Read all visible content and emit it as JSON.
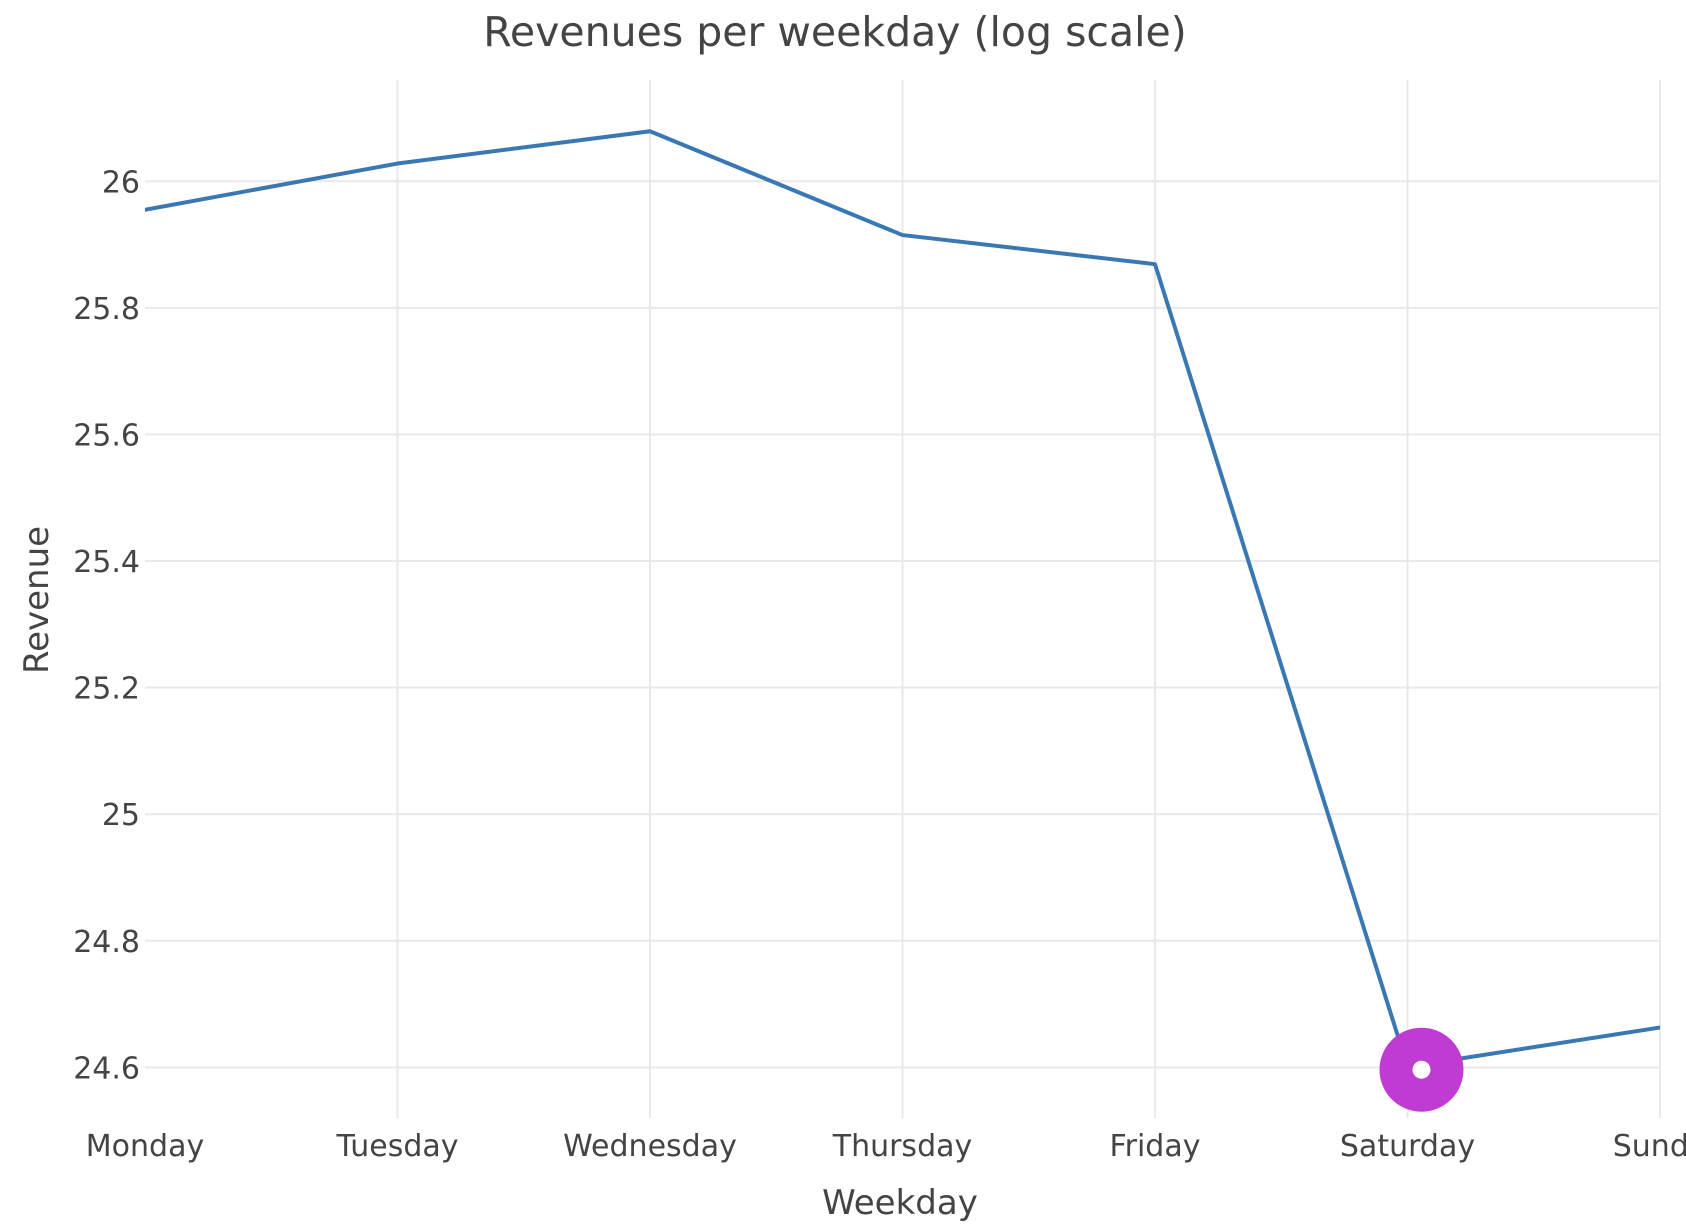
{
  "chart_data": {
    "type": "line",
    "title": "Revenues per weekday (log scale)",
    "xlabel": "Weekday",
    "ylabel": "Revenue",
    "categories": [
      "Monday",
      "Tuesday",
      "Wednesday",
      "Thursday",
      "Friday",
      "Saturday",
      "Sunday"
    ],
    "x_tick_labels": [
      "Monday",
      "Tuesday",
      "Wednesday",
      "Thursday",
      "Friday",
      "Saturday",
      "Sunda"
    ],
    "series": [
      {
        "values": [
          25.955,
          26.028,
          26.079,
          25.915,
          25.869,
          24.601,
          24.663
        ],
        "color": "#3a78b4"
      }
    ],
    "y_ticks": [
      24.6,
      24.8,
      25,
      25.2,
      25.4,
      25.6,
      25.8,
      26
    ],
    "y_tick_labels": [
      "24.6",
      "24.8",
      "25",
      "25.2",
      "25.4",
      "25.6",
      "25.8",
      "26"
    ],
    "ylim": [
      24.52,
      26.16
    ],
    "grid": true,
    "legend": "none",
    "highlight": {
      "category": "Saturday",
      "value": 24.601,
      "color": "#c03bd1"
    }
  }
}
